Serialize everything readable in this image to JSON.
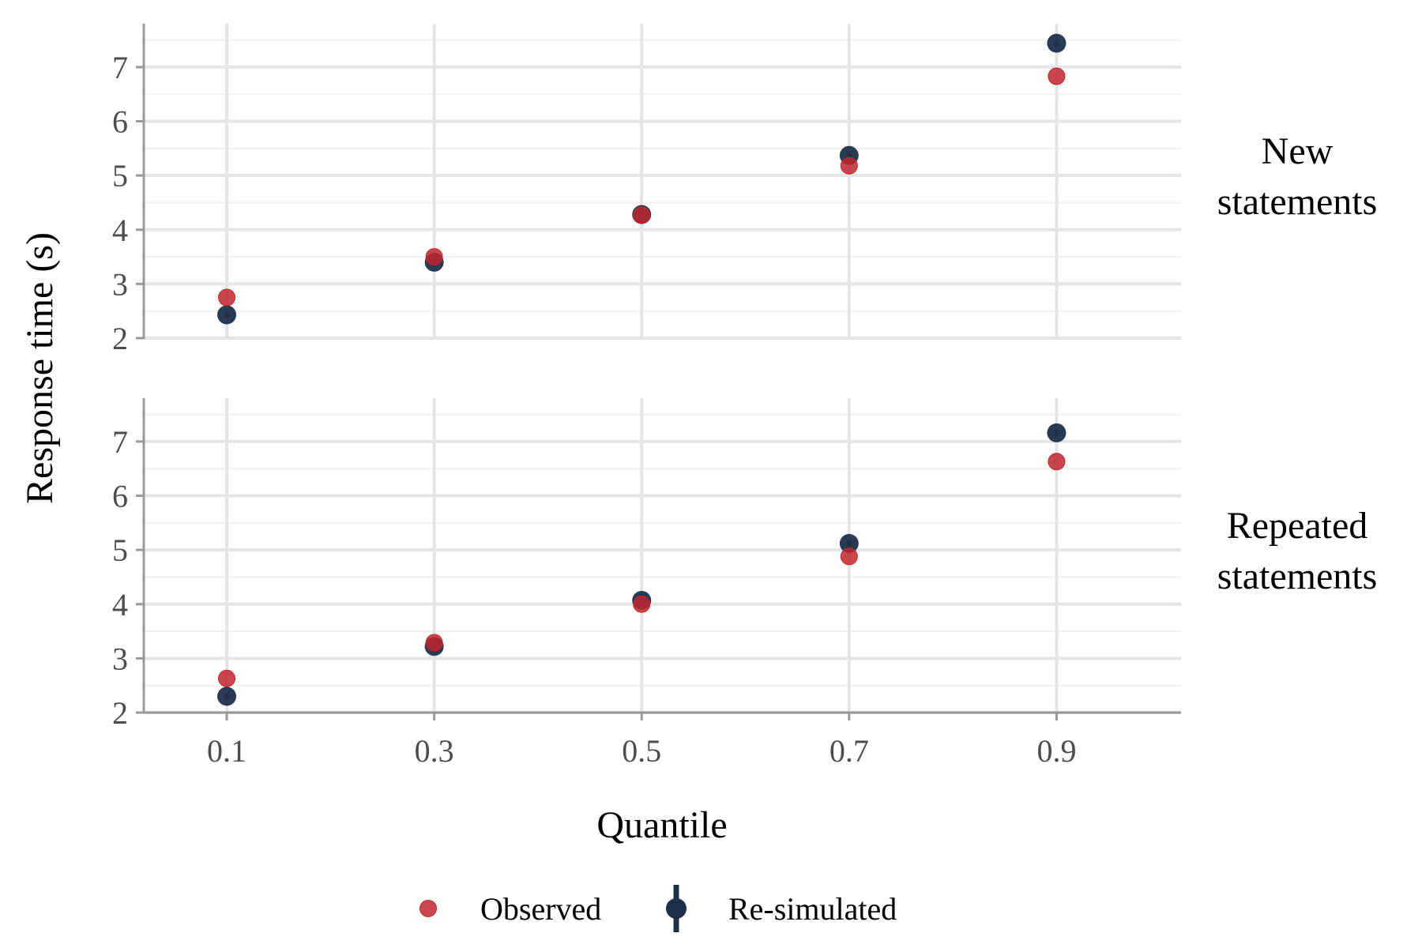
{
  "chart_data": {
    "type": "scatter",
    "xlabel": "Quantile",
    "ylabel": "Response time (s)",
    "x_ticks": [
      "0.1",
      "0.3",
      "0.5",
      "0.7",
      "0.9"
    ],
    "y_ticks": [
      "2",
      "3",
      "4",
      "5",
      "6",
      "7"
    ],
    "xlim": [
      0.02,
      1.02
    ],
    "ylim": [
      2,
      7.8
    ],
    "grid": true,
    "legend_position": "bottom",
    "legend": [
      {
        "name": "Observed",
        "color": "#c0262d"
      },
      {
        "name": "Re-simulated",
        "color": "#1e2f4a"
      }
    ],
    "panels": [
      {
        "label_lines": [
          "New",
          "statements"
        ],
        "series": [
          {
            "name": "Observed",
            "x": [
              0.1,
              0.3,
              0.5,
              0.7,
              0.9
            ],
            "y": [
              2.75,
              3.5,
              4.27,
              5.18,
              6.83
            ]
          },
          {
            "name": "Re-simulated",
            "x": [
              0.1,
              0.3,
              0.5,
              0.7,
              0.9
            ],
            "y": [
              2.43,
              3.4,
              4.28,
              5.37,
              7.44
            ],
            "error": [
              0.05,
              0.05,
              0.05,
              0.05,
              0.05
            ]
          }
        ]
      },
      {
        "label_lines": [
          "Repeated",
          "statements"
        ],
        "series": [
          {
            "name": "Observed",
            "x": [
              0.1,
              0.3,
              0.5,
              0.7,
              0.9
            ],
            "y": [
              2.63,
              3.29,
              4.0,
              4.88,
              6.63
            ]
          },
          {
            "name": "Re-simulated",
            "x": [
              0.1,
              0.3,
              0.5,
              0.7,
              0.9
            ],
            "y": [
              2.3,
              3.22,
              4.07,
              5.12,
              7.16
            ],
            "error": [
              0.05,
              0.05,
              0.05,
              0.05,
              0.05
            ]
          }
        ]
      }
    ]
  }
}
